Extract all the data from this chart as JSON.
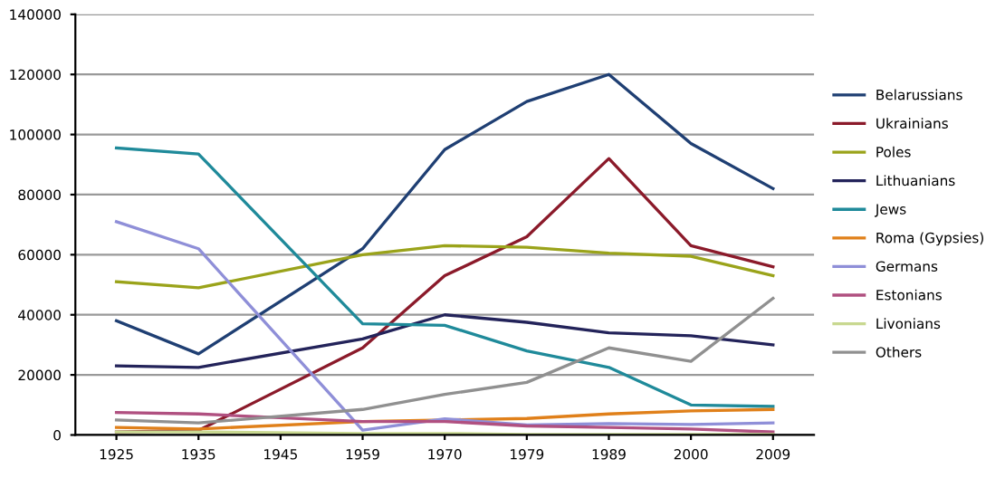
{
  "chart_data": {
    "type": "line",
    "categories": [
      "1925",
      "1935",
      "1945",
      "1959",
      "1970",
      "1979",
      "1989",
      "2000",
      "2009"
    ],
    "ylim": [
      0,
      140000
    ],
    "yticks": [
      0,
      20000,
      40000,
      60000,
      80000,
      100000,
      120000,
      140000
    ],
    "grid": "y",
    "legend": "right",
    "marker": "none",
    "line_style": "solid",
    "series": [
      {
        "name": "Belarussians",
        "color": "#1f3f73",
        "values": [
          38000,
          27000,
          null,
          62000,
          95000,
          111000,
          120000,
          97000,
          82000
        ]
      },
      {
        "name": "Ukrainians",
        "color": "#8b1a2a",
        "values": [
          1000,
          1500,
          null,
          29000,
          53000,
          66000,
          92000,
          63000,
          56000
        ]
      },
      {
        "name": "Poles",
        "color": "#9aa31a",
        "values": [
          51000,
          49000,
          null,
          60000,
          63000,
          62500,
          60500,
          59500,
          53000
        ]
      },
      {
        "name": "Lithuanians",
        "color": "#23235a",
        "values": [
          23000,
          22500,
          null,
          32000,
          40000,
          37500,
          34000,
          33000,
          30000
        ]
      },
      {
        "name": "Jews",
        "color": "#1f8a9a",
        "values": [
          95500,
          93500,
          null,
          37000,
          36500,
          28000,
          22500,
          10000,
          9500
        ]
      },
      {
        "name": "Roma (Gypsies)",
        "color": "#e0801a",
        "values": [
          2500,
          2000,
          null,
          4500,
          5000,
          5500,
          7000,
          8000,
          8500
        ]
      },
      {
        "name": "Germans",
        "color": "#8f8fd8",
        "values": [
          71000,
          62000,
          null,
          1600,
          5400,
          3300,
          3800,
          3500,
          4000
        ]
      },
      {
        "name": "Estonians",
        "color": "#b05080",
        "values": [
          7500,
          7000,
          null,
          4500,
          4500,
          3000,
          2500,
          2000,
          1000
        ]
      },
      {
        "name": "Livonians",
        "color": "#c8d890",
        "values": [
          1000,
          1000,
          null,
          500,
          500,
          200,
          200,
          200,
          200
        ]
      },
      {
        "name": "Others",
        "color": "#909090",
        "values": [
          5000,
          4000,
          null,
          8500,
          13500,
          17500,
          29000,
          24500,
          45500
        ]
      }
    ]
  }
}
